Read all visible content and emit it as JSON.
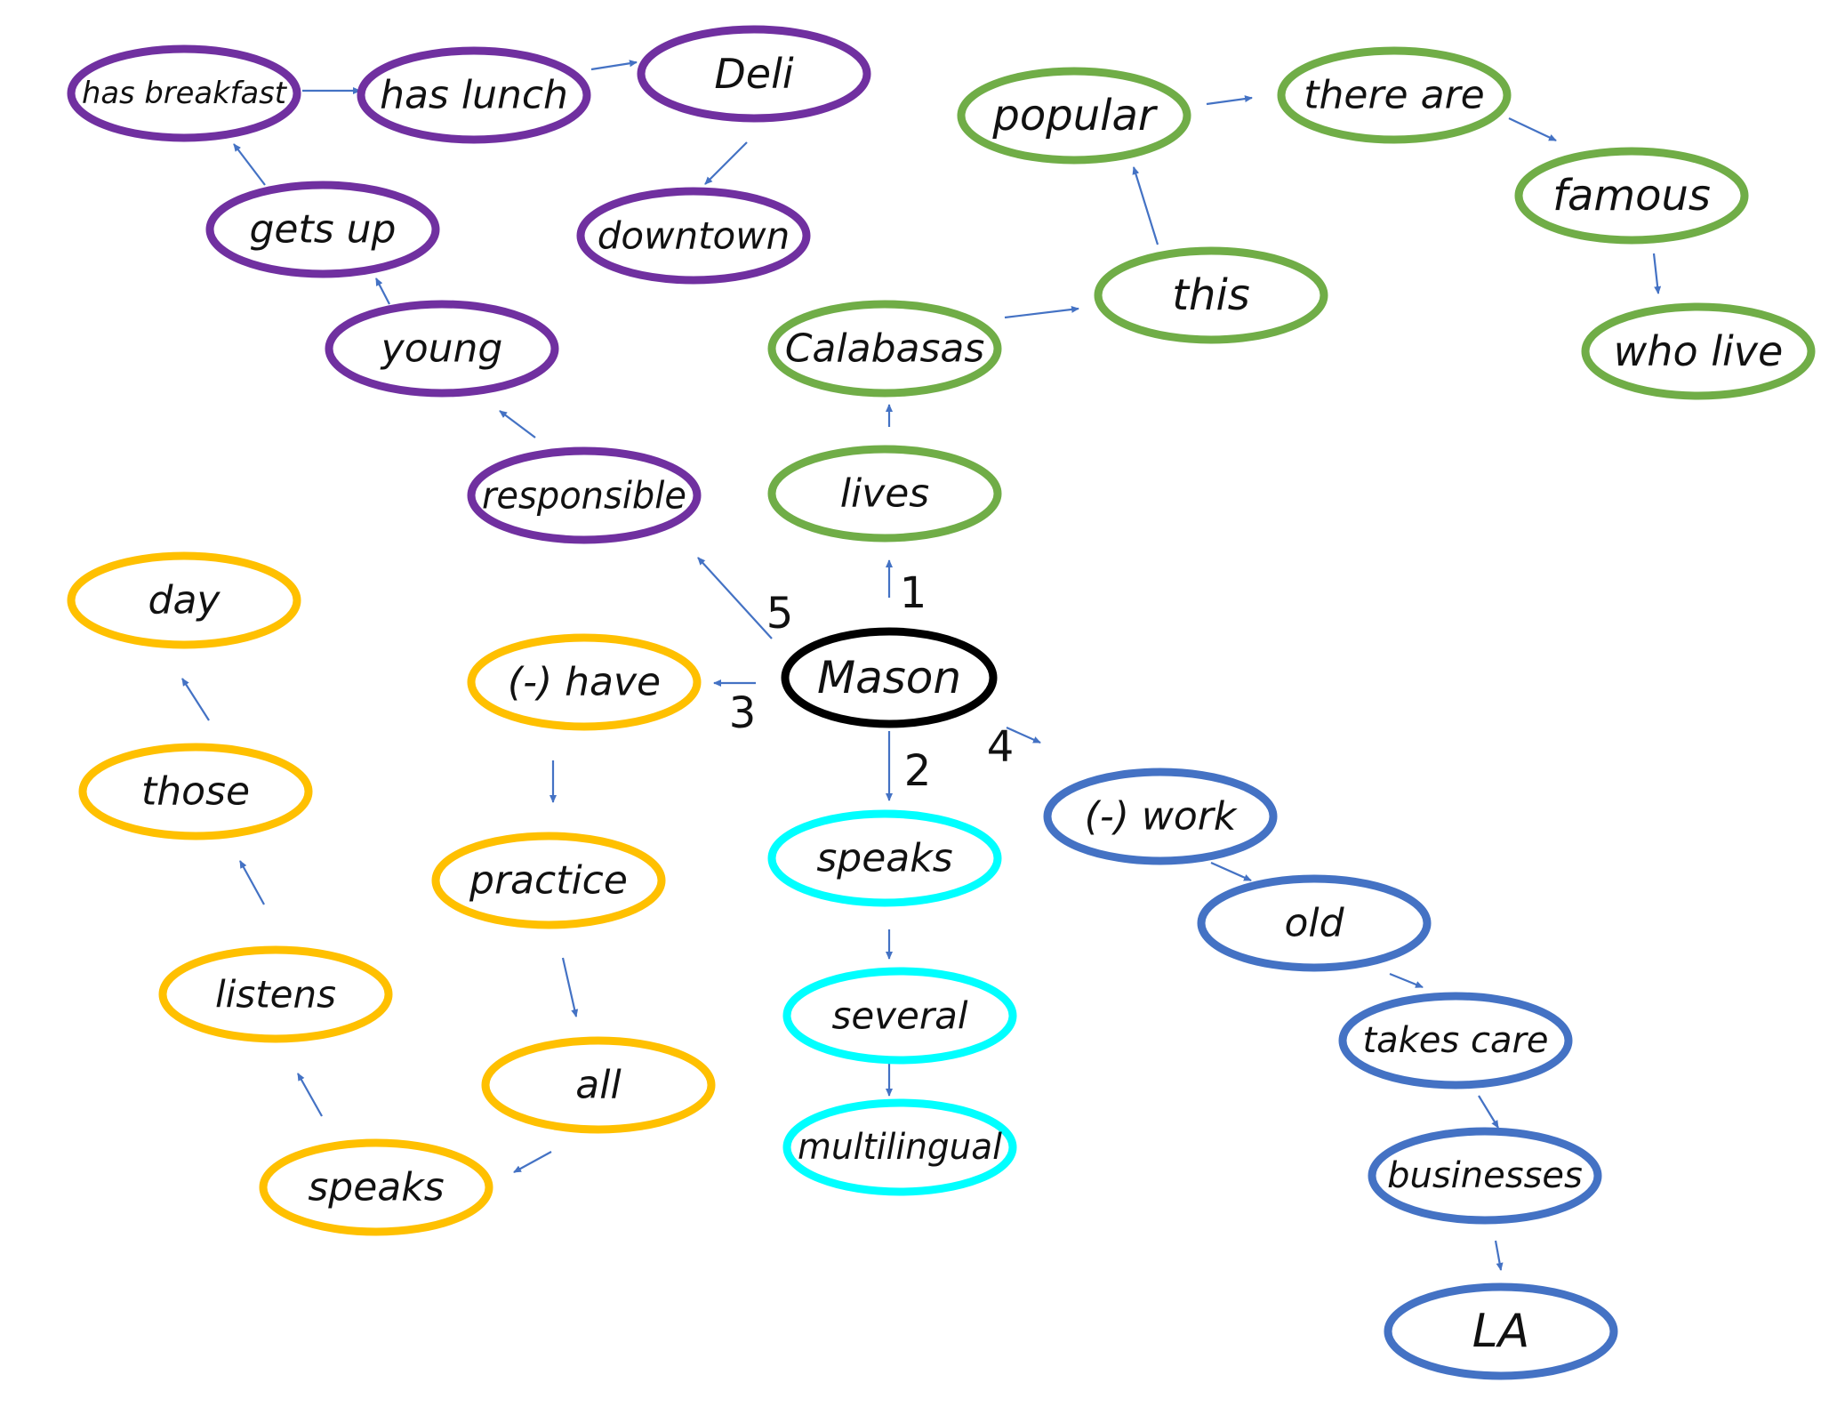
{
  "colors": {
    "center": "#000000",
    "purple": "#7030a0",
    "green": "#70ad47",
    "cyan": "#00ffff",
    "yellow": "#ffc000",
    "blue": "#4472c4",
    "arrow": "#4472c4"
  },
  "center": {
    "id": "mason",
    "label": "Mason"
  },
  "branches": [
    {
      "step": "1",
      "color": "green",
      "nodes": [
        {
          "id": "lives",
          "label": "lives"
        },
        {
          "id": "calabasas",
          "label": "Calabasas"
        },
        {
          "id": "this",
          "label": "this"
        },
        {
          "id": "popular",
          "label": "popular"
        },
        {
          "id": "there-are",
          "label": "there are"
        },
        {
          "id": "famous",
          "label": "famous"
        },
        {
          "id": "who-live",
          "label": "who live"
        }
      ]
    },
    {
      "step": "2",
      "color": "cyan",
      "nodes": [
        {
          "id": "speaks-c",
          "label": "speaks"
        },
        {
          "id": "several",
          "label": "several"
        },
        {
          "id": "multilingual",
          "label": "multilingual"
        }
      ]
    },
    {
      "step": "3",
      "color": "yellow",
      "nodes": [
        {
          "id": "have",
          "label": "(-) have"
        },
        {
          "id": "practice",
          "label": "practice"
        },
        {
          "id": "all",
          "label": "all"
        },
        {
          "id": "speaks-y",
          "label": "speaks"
        },
        {
          "id": "listens",
          "label": "listens"
        },
        {
          "id": "those",
          "label": "those"
        },
        {
          "id": "day",
          "label": "day"
        }
      ]
    },
    {
      "step": "4",
      "color": "blue",
      "nodes": [
        {
          "id": "work",
          "label": "(-) work"
        },
        {
          "id": "old",
          "label": "old"
        },
        {
          "id": "takes-care",
          "label": "takes care"
        },
        {
          "id": "businesses",
          "label": "businesses"
        },
        {
          "id": "la",
          "label": "LA"
        }
      ]
    },
    {
      "step": "5",
      "color": "purple",
      "nodes": [
        {
          "id": "responsible",
          "label": "responsible"
        },
        {
          "id": "young",
          "label": "young"
        },
        {
          "id": "gets-up",
          "label": "gets up"
        },
        {
          "id": "has-breakfast",
          "label": "has breakfast"
        },
        {
          "id": "has-lunch",
          "label": "has lunch"
        },
        {
          "id": "deli",
          "label": "Deli"
        },
        {
          "id": "downtown",
          "label": "downtown"
        }
      ]
    }
  ]
}
